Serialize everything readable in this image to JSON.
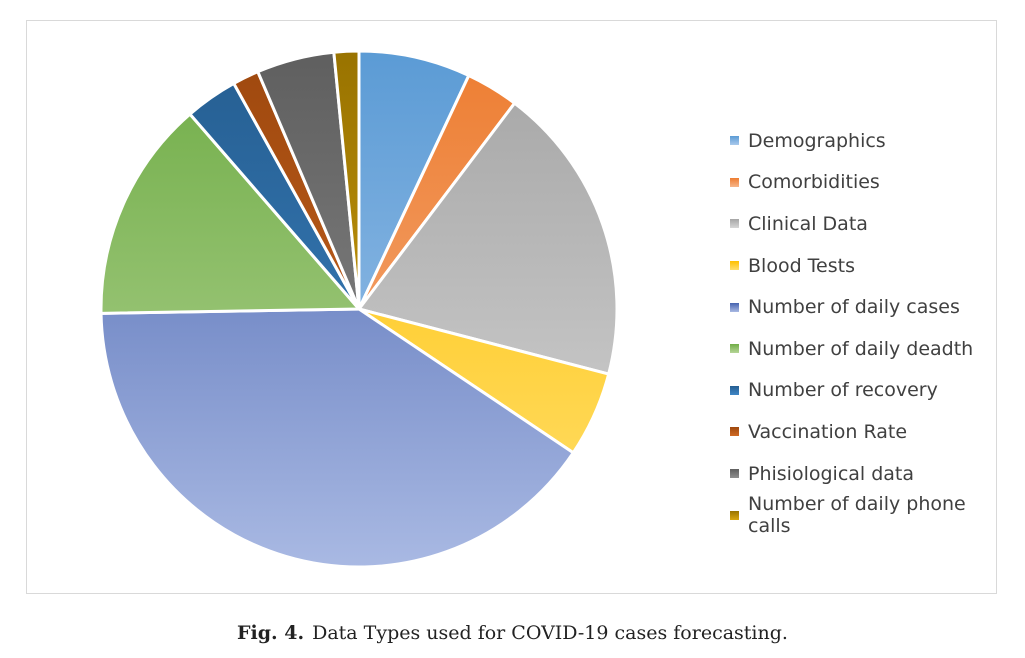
{
  "chart_data": {
    "type": "pie",
    "legend_position": "right",
    "slices": [
      {
        "label": "Demographics",
        "value": 7.2,
        "color": "#5b9bd5",
        "color_light": "#a9c9ec"
      },
      {
        "label": "Comorbidities",
        "value": 3.4,
        "color": "#ed7d31",
        "color_light": "#f6b58a"
      },
      {
        "label": "Clinical Data",
        "value": 19.3,
        "color": "#a5a5a5",
        "color_light": "#d6d6d6"
      },
      {
        "label": "Blood Tests",
        "value": 5.5,
        "color": "#ffc000",
        "color_light": "#ffdf6e"
      },
      {
        "label": "Number of daily cases",
        "value": 41.5,
        "color": "#4763af",
        "color_light": "#a9b9e3"
      },
      {
        "label": "Number of daily deadth",
        "value": 14.3,
        "color": "#70ad47",
        "color_light": "#b6d597"
      },
      {
        "label": "Number of recovery",
        "value": 3.4,
        "color": "#255e91",
        "color_light": "#3f86c6"
      },
      {
        "label": "Vaccination Rate",
        "value": 1.7,
        "color": "#9e480e",
        "color_light": "#d06a24"
      },
      {
        "label": "Phisiological data",
        "value": 5.0,
        "color": "#5f5f5f",
        "color_light": "#8f8f8f"
      },
      {
        "label": "Number of daily phone calls",
        "value": 1.6,
        "color": "#997300",
        "color_light": "#d9a711"
      }
    ]
  },
  "caption": {
    "label": "Fig. 4.",
    "text": "Data Types used for COVID-19 cases forecasting."
  }
}
